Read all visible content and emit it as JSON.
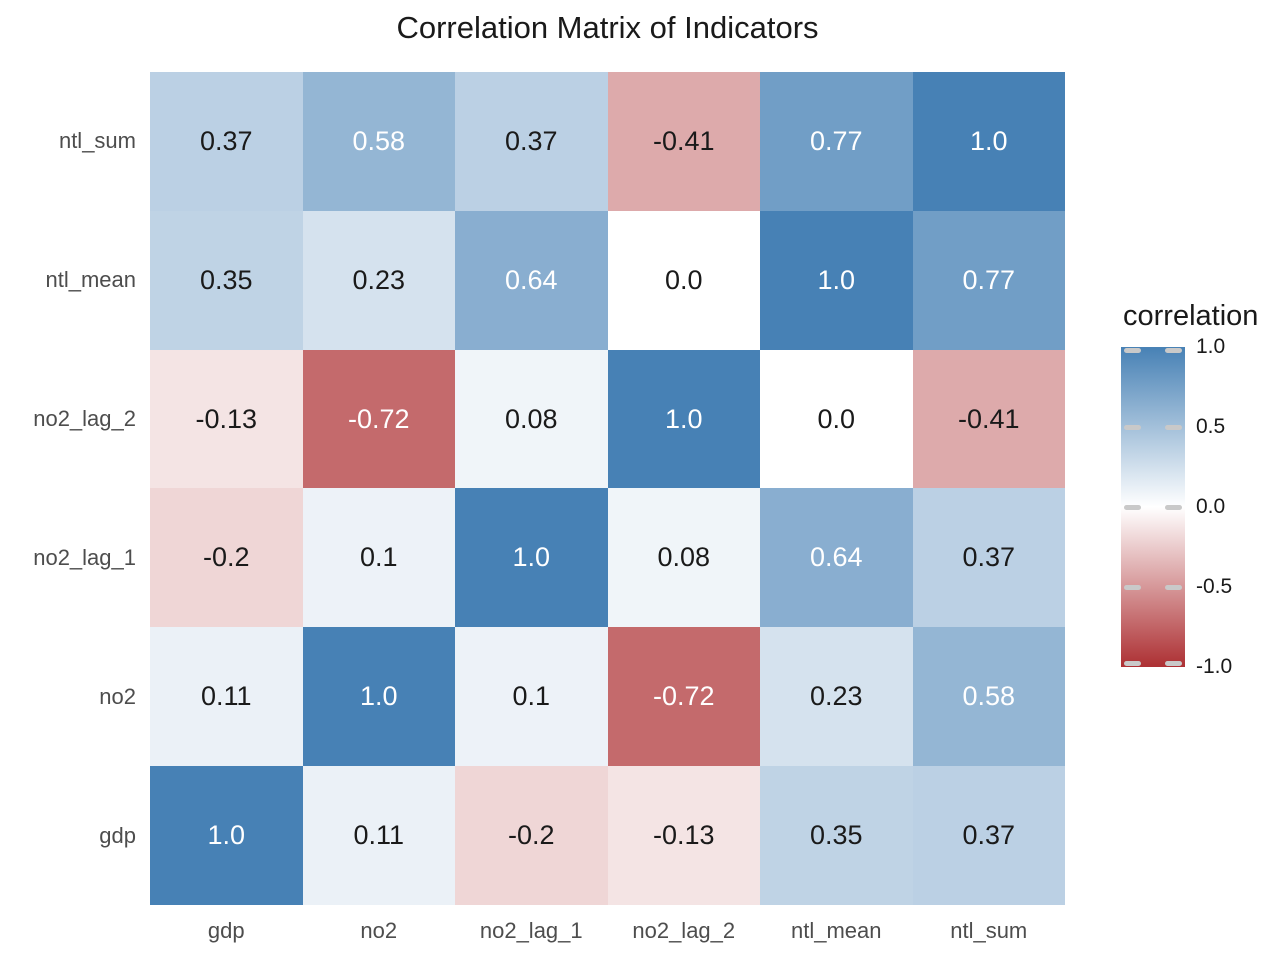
{
  "title": "Correlation Matrix of Indicators",
  "colors": {
    "positive_end": "#4781b5",
    "zero": "#ffffff",
    "negative_end": "#ad3033",
    "axis_label": "#4d4d4d",
    "title_text": "#1a1a1a",
    "value_text_dark": "#1a1a1a",
    "value_text_light": "#ffffff",
    "tick_dash": "#c9c9c9"
  },
  "chart_data": {
    "type": "heatmap",
    "title": "Correlation Matrix of Indicators",
    "x_categories": [
      "gdp",
      "no2",
      "no2_lag_1",
      "no2_lag_2",
      "ntl_mean",
      "ntl_sum"
    ],
    "y_categories": [
      "ntl_sum",
      "ntl_mean",
      "no2_lag_2",
      "no2_lag_1",
      "no2",
      "gdp"
    ],
    "values": [
      [
        "0.37",
        "0.58",
        "0.37",
        "-0.41",
        "0.77",
        "1.0"
      ],
      [
        "0.35",
        "0.23",
        "0.64",
        "0.0",
        "1.0",
        "0.77"
      ],
      [
        "-0.13",
        "-0.72",
        "0.08",
        "1.0",
        "0.0",
        "-0.41"
      ],
      [
        "-0.2",
        "0.1",
        "1.0",
        "0.08",
        "0.64",
        "0.37"
      ],
      [
        "0.11",
        "1.0",
        "0.1",
        "-0.72",
        "0.23",
        "0.58"
      ],
      [
        "1.0",
        "0.11",
        "-0.2",
        "-0.13",
        "0.35",
        "0.37"
      ]
    ],
    "value_range": [
      -1,
      1
    ],
    "white_text_threshold": 0.5,
    "grid": false,
    "legend": {
      "title": "correlation",
      "position": "right",
      "ticks": [
        "1.0",
        "0.5",
        "0.0",
        "-0.5",
        "-1.0"
      ]
    }
  }
}
